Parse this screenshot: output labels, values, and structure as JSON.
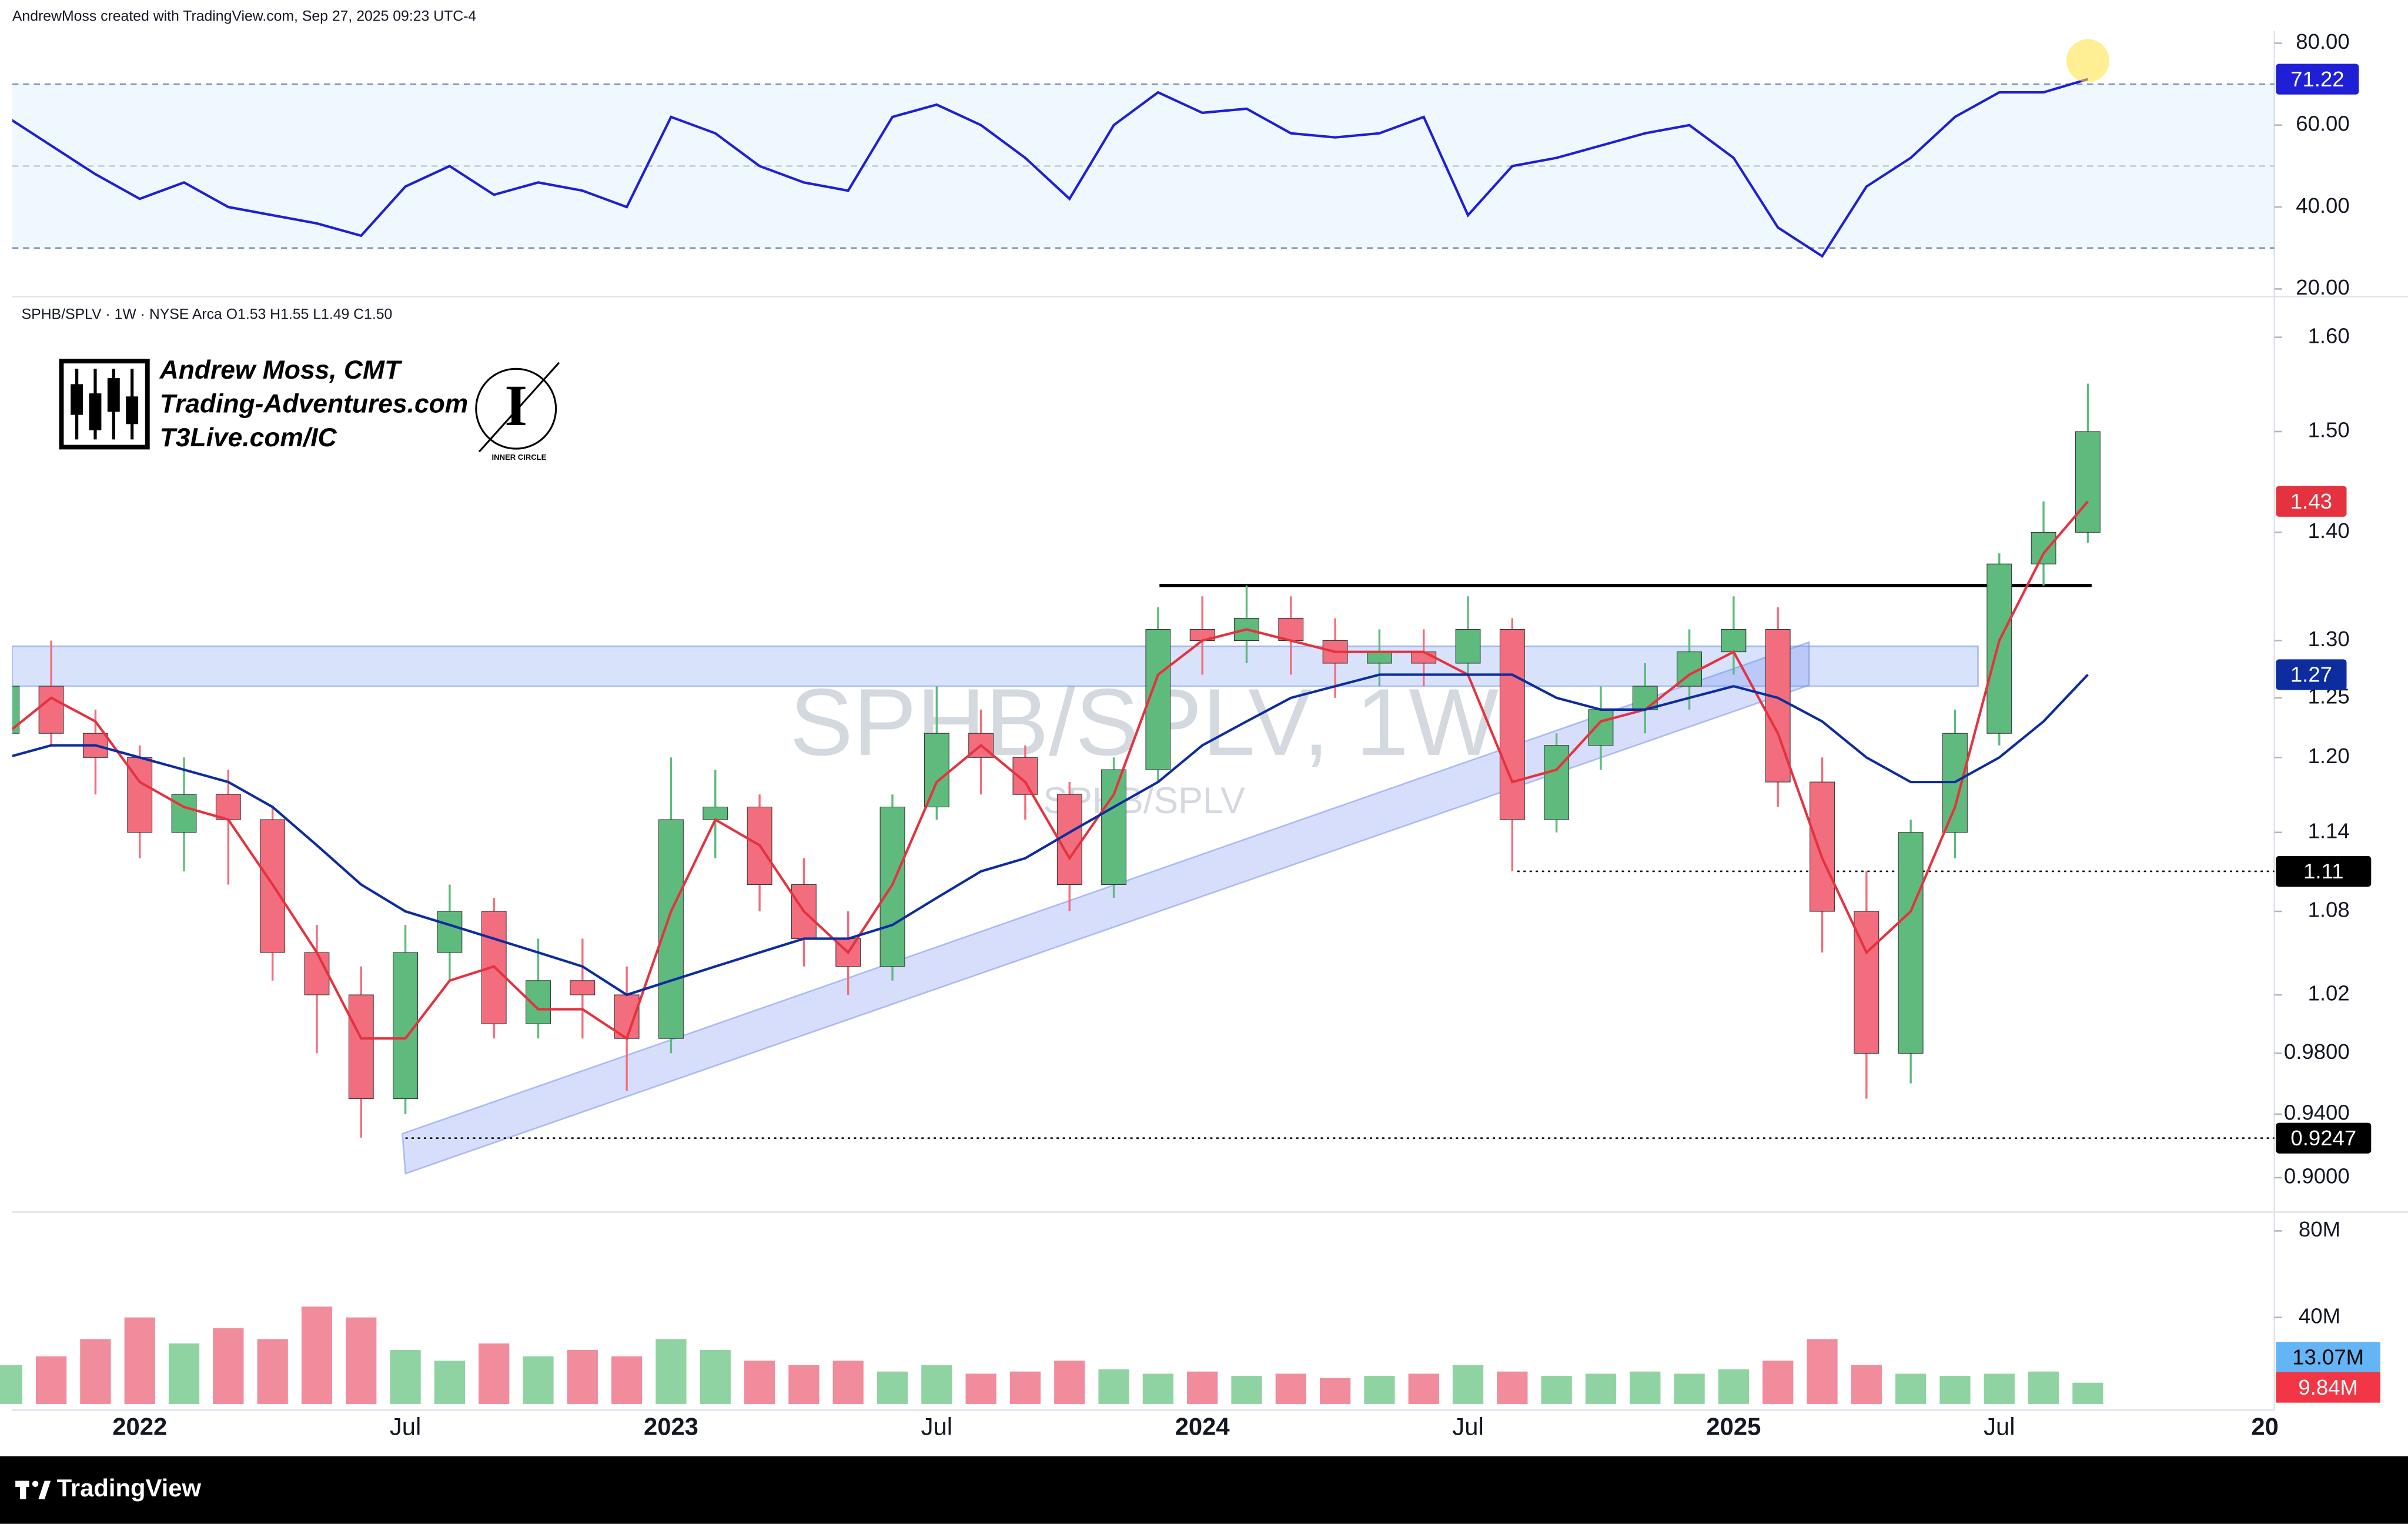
{
  "attribution": "AndrewMoss created with TradingView.com, Sep 27, 2025 09:23 UTC-4",
  "legend": "SPHB/SPLV · 1W · NYSE Arca  O1.53  H1.55  L1.49  C1.50",
  "logo": {
    "name": "Andrew Moss, CMT",
    "site": "Trading-Adventures.com",
    "link": "T3Live.com/IC",
    "badge": "INNER CIRCLE"
  },
  "footer": "TradingView",
  "chart_data": {
    "type": "candlestick",
    "title": "SPHB/SPLV, 1W",
    "subtitle": "SPHB/SPLV",
    "categories": [
      null,
      null,
      null,
      "2022",
      null,
      null,
      null,
      null,
      null,
      "Jul",
      null,
      null,
      null,
      null,
      null,
      "2023",
      null,
      null,
      null,
      null,
      null,
      "Jul",
      null,
      null,
      null,
      null,
      null,
      "2024",
      null,
      null,
      null,
      null,
      null,
      "Jul",
      null,
      null,
      null,
      null,
      null,
      "2025",
      null,
      null,
      null,
      null,
      null,
      "Jul",
      null,
      null,
      null,
      null,
      null,
      "20"
    ],
    "log_scale": true,
    "up_color": "#5fba7d",
    "down_color": "#f26d7d",
    "open": [
      1.22,
      1.26,
      1.22,
      1.2,
      1.14,
      1.17,
      1.15,
      1.05,
      1.02,
      0.95,
      1.05,
      1.08,
      1.0,
      1.03,
      1.02,
      0.99,
      1.15,
      1.16,
      1.1,
      1.06,
      1.04,
      1.16,
      1.22,
      1.2,
      1.17,
      1.1,
      1.19,
      1.31,
      1.3,
      1.32,
      1.3,
      1.28,
      1.29,
      1.28,
      1.31,
      1.15,
      1.21,
      1.24,
      1.26,
      1.29,
      1.31,
      1.18,
      1.08,
      0.98,
      1.14,
      1.22,
      1.37,
      1.4,
      null,
      null,
      null,
      null
    ],
    "high": [
      1.27,
      1.3,
      1.24,
      1.21,
      1.2,
      1.19,
      1.16,
      1.07,
      1.04,
      1.07,
      1.1,
      1.09,
      1.06,
      1.06,
      1.04,
      1.2,
      1.19,
      1.17,
      1.12,
      1.08,
      1.17,
      1.26,
      1.24,
      1.21,
      1.18,
      1.2,
      1.33,
      1.34,
      1.35,
      1.34,
      1.32,
      1.31,
      1.31,
      1.34,
      1.32,
      1.22,
      1.26,
      1.28,
      1.31,
      1.34,
      1.33,
      1.2,
      1.11,
      1.15,
      1.24,
      1.38,
      1.43,
      1.55,
      null,
      null,
      null,
      null
    ],
    "low": [
      1.2,
      1.21,
      1.17,
      1.12,
      1.11,
      1.1,
      1.03,
      0.98,
      0.925,
      0.94,
      1.03,
      0.99,
      0.99,
      0.99,
      0.955,
      0.98,
      1.12,
      1.08,
      1.04,
      1.02,
      1.03,
      1.15,
      1.17,
      1.15,
      1.08,
      1.09,
      1.18,
      1.27,
      1.28,
      1.27,
      1.25,
      1.26,
      1.26,
      1.27,
      1.11,
      1.14,
      1.19,
      1.22,
      1.24,
      1.27,
      1.16,
      1.05,
      0.95,
      0.96,
      1.12,
      1.21,
      1.35,
      1.39,
      null,
      null,
      null,
      null
    ],
    "close": [
      1.26,
      1.22,
      1.2,
      1.14,
      1.17,
      1.15,
      1.05,
      1.02,
      0.95,
      1.05,
      1.08,
      1.0,
      1.03,
      1.02,
      0.99,
      1.15,
      1.16,
      1.1,
      1.06,
      1.04,
      1.16,
      1.22,
      1.2,
      1.17,
      1.1,
      1.19,
      1.31,
      1.3,
      1.32,
      1.3,
      1.28,
      1.29,
      1.28,
      1.31,
      1.15,
      1.21,
      1.24,
      1.26,
      1.29,
      1.31,
      1.18,
      1.08,
      0.98,
      1.14,
      1.22,
      1.37,
      1.4,
      1.5,
      null,
      null,
      null,
      null
    ],
    "series": [
      {
        "color": "#e5323f",
        "values": [
          1.22,
          1.25,
          1.23,
          1.18,
          1.16,
          1.15,
          1.1,
          1.05,
          0.99,
          0.99,
          1.03,
          1.04,
          1.01,
          1.01,
          0.99,
          1.08,
          1.15,
          1.13,
          1.08,
          1.05,
          1.1,
          1.18,
          1.21,
          1.18,
          1.12,
          1.17,
          1.27,
          1.3,
          1.31,
          1.3,
          1.29,
          1.29,
          1.29,
          1.27,
          1.18,
          1.19,
          1.23,
          1.24,
          1.27,
          1.29,
          1.22,
          1.12,
          1.05,
          1.08,
          1.16,
          1.3,
          1.38,
          1.43,
          null,
          null,
          null,
          null
        ]
      },
      {
        "color": "#0d2d9e",
        "values": [
          1.2,
          1.21,
          1.21,
          1.2,
          1.19,
          1.18,
          1.16,
          1.13,
          1.1,
          1.08,
          1.07,
          1.06,
          1.05,
          1.04,
          1.02,
          1.03,
          1.04,
          1.05,
          1.06,
          1.06,
          1.07,
          1.09,
          1.11,
          1.12,
          1.14,
          1.16,
          1.18,
          1.21,
          1.23,
          1.25,
          1.26,
          1.27,
          1.27,
          1.27,
          1.27,
          1.25,
          1.24,
          1.24,
          1.25,
          1.26,
          1.25,
          1.23,
          1.2,
          1.18,
          1.18,
          1.2,
          1.23,
          1.27,
          null,
          null,
          null,
          null
        ]
      }
    ],
    "ylim": [
      0.88,
      1.64
    ],
    "yticks": [
      {
        "value": 1.6,
        "label": "1.60"
      },
      {
        "value": 1.5,
        "label": "1.50"
      },
      {
        "value": 1.4,
        "label": "1.40"
      },
      {
        "value": 1.3,
        "label": "1.30"
      },
      1.25,
      {
        "value": 1.2,
        "label": "1.20"
      },
      1.14,
      1.08,
      1.02,
      {
        "value": 0.98,
        "label": "0.9800"
      },
      {
        "value": 0.94,
        "label": "0.9400"
      },
      {
        "value": 0.9,
        "label": "0.9000"
      }
    ],
    "resistance": 1.35,
    "zone": [
      1.26,
      1.295
    ],
    "levels": [
      1.11,
      0.9247
    ],
    "rsi": {
      "color": "#1f1fd6",
      "values": [
        62,
        55,
        48,
        42,
        46,
        40,
        38,
        36,
        33,
        45,
        50,
        43,
        46,
        44,
        40,
        62,
        58,
        50,
        46,
        44,
        62,
        65,
        60,
        52,
        42,
        60,
        68,
        63,
        64,
        58,
        57,
        58,
        62,
        38,
        50,
        52,
        55,
        58,
        60,
        52,
        35,
        28,
        45,
        52,
        62,
        68,
        68,
        71.22,
        null,
        null,
        null,
        null
      ],
      "ylim": [
        18.5,
        83
      ],
      "yticks": [
        {
          "value": 80,
          "label": "80.00"
        },
        {
          "value": 60,
          "label": "60.00"
        },
        {
          "value": 40,
          "label": "40.00"
        },
        {
          "value": 20,
          "label": "20.00"
        }
      ],
      "bands": [
        30,
        50,
        70
      ]
    },
    "volume": {
      "up_color": "#90d3a2",
      "down_color": "#f08c9b",
      "values": [
        18,
        22,
        30,
        40,
        28,
        35,
        30,
        45,
        40,
        25,
        20,
        28,
        22,
        25,
        22,
        30,
        25,
        20,
        18,
        20,
        15,
        18,
        14,
        15,
        20,
        16,
        14,
        15,
        13,
        14,
        12,
        13,
        14,
        18,
        15,
        13,
        14,
        15,
        14,
        16,
        20,
        30,
        18,
        14,
        13,
        14,
        15,
        9.84,
        null,
        null,
        null,
        null
      ],
      "last_label": "9.84M",
      "ma": {
        "value": 13.07,
        "label": "13.07M"
      },
      "ylim": [
        0,
        88
      ],
      "yticks": [
        {
          "value": 40,
          "label": "40M"
        },
        {
          "value": 80,
          "label": "80M"
        }
      ]
    }
  }
}
